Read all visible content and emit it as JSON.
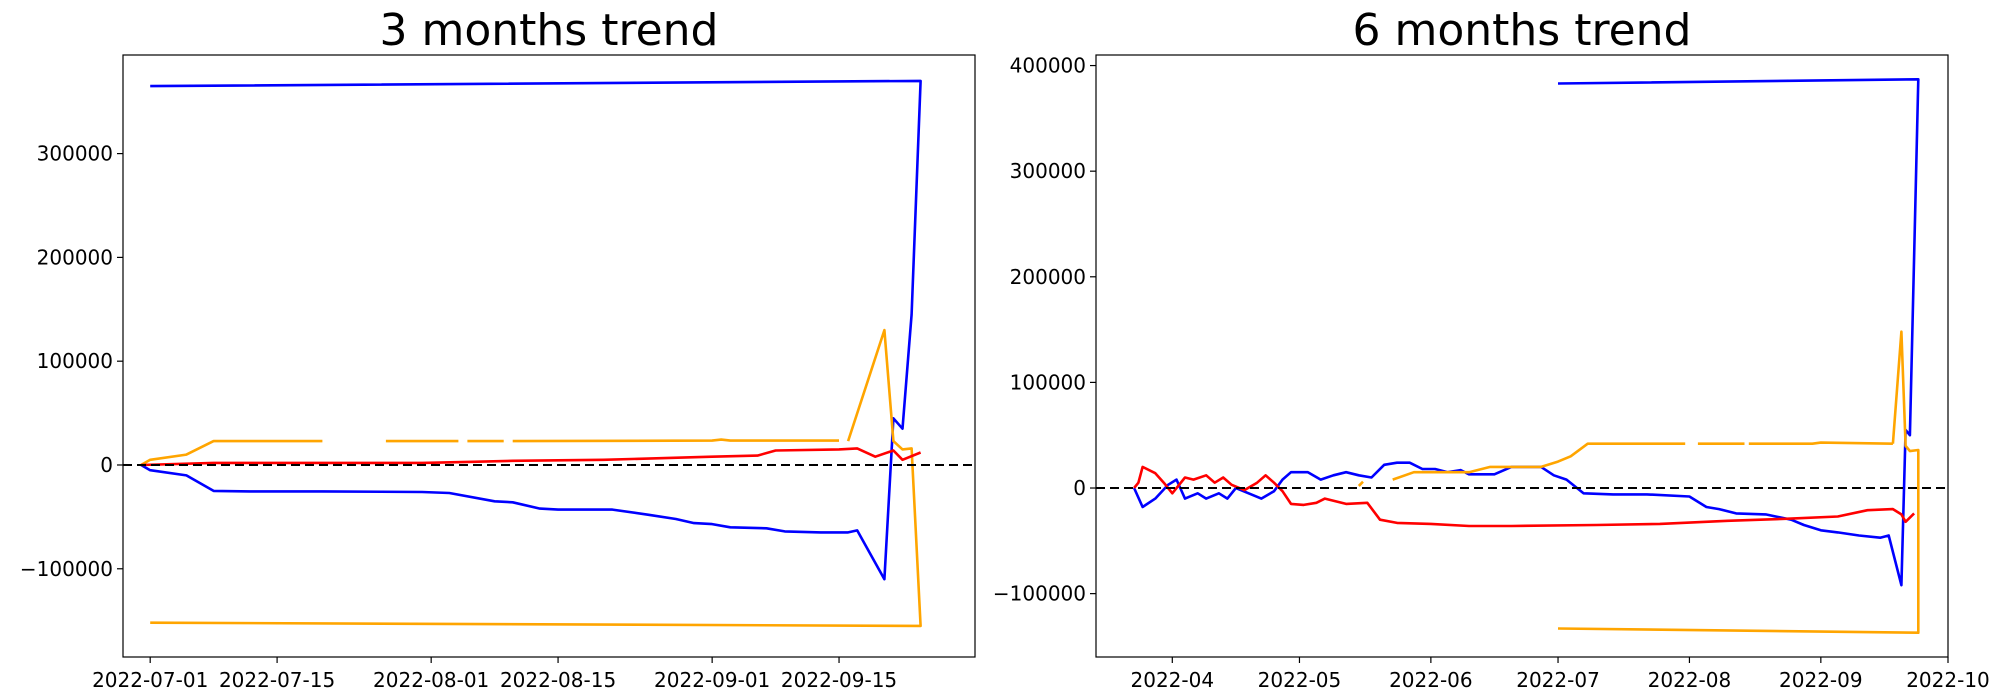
{
  "chart_data": [
    {
      "type": "line",
      "title": "3 months trend",
      "x_type": "date",
      "xlim": [
        "2022-06-28",
        "2022-09-30"
      ],
      "ylim": [
        -185000,
        395000
      ],
      "xticks": [
        "2022-07-01",
        "2022-07-15",
        "2022-08-01",
        "2022-08-15",
        "2022-09-01",
        "2022-09-15"
      ],
      "yticks": [
        -100000,
        0,
        100000,
        200000,
        300000
      ],
      "hline": 0,
      "series": [
        {
          "color": "#0000ff",
          "points": [
            [
              "2022-06-30",
              0
            ],
            [
              "2022-07-01",
              -5000
            ],
            [
              "2022-07-05",
              -10000
            ],
            [
              "2022-07-08",
              -25000
            ],
            [
              "2022-07-12",
              -25500
            ],
            [
              "2022-07-20",
              -25500
            ],
            [
              "2022-07-31",
              -26000
            ],
            [
              "2022-08-03",
              -27000
            ],
            [
              "2022-08-08",
              -35000
            ],
            [
              "2022-08-10",
              -36000
            ],
            [
              "2022-08-13",
              -42000
            ],
            [
              "2022-08-15",
              -43000
            ],
            [
              "2022-08-21",
              -43000
            ],
            [
              "2022-08-25",
              -48000
            ],
            [
              "2022-08-28",
              -52000
            ],
            [
              "2022-08-30",
              -56000
            ],
            [
              "2022-09-01",
              -57000
            ],
            [
              "2022-09-03",
              -60000
            ],
            [
              "2022-09-07",
              -61000
            ],
            [
              "2022-09-09",
              -64000
            ],
            [
              "2022-09-13",
              -65000
            ],
            [
              "2022-09-16",
              -65000
            ],
            [
              "2022-09-17",
              -63000
            ],
            [
              "2022-09-20",
              -110000
            ],
            [
              "2022-09-21",
              45000
            ],
            [
              "2022-09-22",
              35000
            ],
            [
              "2022-09-23",
              145000
            ],
            [
              "2022-09-24",
              370000
            ],
            [
              "2022-07-01",
              365000
            ]
          ]
        },
        {
          "color": "#ffa500",
          "points": [
            [
              "2022-06-30",
              0
            ],
            [
              "2022-07-01",
              5000
            ],
            [
              "2022-07-05",
              10000
            ],
            [
              "2022-07-08",
              23000
            ],
            [
              "2022-07-20",
              23000
            ],
            null,
            [
              "2022-07-27",
              23000
            ],
            [
              "2022-08-04",
              23000
            ],
            null,
            [
              "2022-08-05",
              23000
            ],
            [
              "2022-08-09",
              23000
            ],
            null,
            [
              "2022-08-10",
              23000
            ],
            [
              "2022-09-01",
              23500
            ],
            [
              "2022-09-02",
              24500
            ],
            [
              "2022-09-03",
              23500
            ],
            [
              "2022-09-15",
              23500
            ],
            null,
            [
              "2022-09-16",
              23000
            ],
            [
              "2022-09-20",
              130000
            ],
            [
              "2022-09-21",
              23000
            ],
            [
              "2022-09-22",
              15000
            ],
            [
              "2022-09-23",
              16000
            ],
            [
              "2022-09-24",
              -155000
            ],
            [
              "2022-07-01",
              -152000
            ]
          ]
        },
        {
          "color": "#ff0000",
          "points": [
            [
              "2022-06-30",
              0
            ],
            [
              "2022-07-08",
              2000
            ],
            [
              "2022-07-20",
              2000
            ],
            [
              "2022-07-31",
              2000
            ],
            [
              "2022-08-05",
              3000
            ],
            [
              "2022-08-10",
              4000
            ],
            [
              "2022-08-20",
              5000
            ],
            [
              "2022-09-01",
              8000
            ],
            [
              "2022-09-06",
              9000
            ],
            [
              "2022-09-08",
              14000
            ],
            [
              "2022-09-15",
              15000
            ],
            [
              "2022-09-17",
              16000
            ],
            [
              "2022-09-19",
              8000
            ],
            [
              "2022-09-21",
              14000
            ],
            [
              "2022-09-22",
              5000
            ],
            [
              "2022-09-24",
              12000
            ]
          ]
        }
      ]
    },
    {
      "type": "line",
      "title": "6 months trend",
      "x_type": "date",
      "xlim": [
        "2022-03-14",
        "2022-10-01"
      ],
      "ylim": [
        -160000,
        410000
      ],
      "xticks": [
        "2022-04",
        "2022-05",
        "2022-06",
        "2022-07",
        "2022-08",
        "2022-09",
        "2022-10"
      ],
      "yticks": [
        -100000,
        0,
        100000,
        200000,
        300000,
        400000
      ],
      "hline": 0,
      "series": [
        {
          "color": "#0000ff",
          "points": [
            [
              "2022-03-23",
              0
            ],
            [
              "2022-03-25",
              -18000
            ],
            [
              "2022-03-28",
              -10000
            ],
            [
              "2022-03-31",
              3000
            ],
            [
              "2022-04-02",
              8000
            ],
            [
              "2022-04-04",
              -10000
            ],
            [
              "2022-04-07",
              -5000
            ],
            [
              "2022-04-09",
              -10000
            ],
            [
              "2022-04-12",
              -5000
            ],
            [
              "2022-04-14",
              -10000
            ],
            [
              "2022-04-16",
              0
            ],
            [
              "2022-04-19",
              -5000
            ],
            [
              "2022-04-22",
              -10000
            ],
            [
              "2022-04-25",
              -3000
            ],
            [
              "2022-04-27",
              8000
            ],
            [
              "2022-04-29",
              15000
            ],
            [
              "2022-05-03",
              15000
            ],
            [
              "2022-05-06",
              8000
            ],
            [
              "2022-05-09",
              12000
            ],
            [
              "2022-05-12",
              15000
            ],
            [
              "2022-05-15",
              12000
            ],
            [
              "2022-05-18",
              10000
            ],
            [
              "2022-05-21",
              22000
            ],
            [
              "2022-05-24",
              24000
            ],
            [
              "2022-05-27",
              24000
            ],
            [
              "2022-05-30",
              18000
            ],
            [
              "2022-06-02",
              18000
            ],
            [
              "2022-06-05",
              15000
            ],
            [
              "2022-06-08",
              17000
            ],
            [
              "2022-06-10",
              13000
            ],
            [
              "2022-06-16",
              13000
            ],
            [
              "2022-06-20",
              20000
            ],
            [
              "2022-06-27",
              20000
            ],
            [
              "2022-06-30",
              12000
            ],
            [
              "2022-07-03",
              8000
            ],
            [
              "2022-07-07",
              -5000
            ],
            [
              "2022-07-14",
              -6000
            ],
            [
              "2022-07-22",
              -6000
            ],
            [
              "2022-08-01",
              -8000
            ],
            [
              "2022-08-05",
              -18000
            ],
            [
              "2022-08-08",
              -20000
            ],
            [
              "2022-08-12",
              -24000
            ],
            [
              "2022-08-19",
              -25000
            ],
            [
              "2022-08-25",
              -30000
            ],
            [
              "2022-08-28",
              -35000
            ],
            [
              "2022-09-01",
              -40000
            ],
            [
              "2022-09-05",
              -42000
            ],
            [
              "2022-09-10",
              -45000
            ],
            [
              "2022-09-15",
              -47000
            ],
            [
              "2022-09-17",
              -45000
            ],
            [
              "2022-09-20",
              -92000
            ],
            [
              "2022-09-21",
              55000
            ],
            [
              "2022-09-22",
              50000
            ],
            [
              "2022-09-24",
              387000
            ],
            [
              "2022-07-01",
              383000
            ]
          ]
        },
        {
          "color": "#ffa500",
          "points": [
            [
              "2022-05-15",
              2000
            ],
            [
              "2022-05-16",
              6000
            ],
            null,
            [
              "2022-05-23",
              8000
            ],
            [
              "2022-05-28",
              15000
            ],
            [
              "2022-06-10",
              15000
            ],
            [
              "2022-06-15",
              20000
            ],
            [
              "2022-06-27",
              20000
            ],
            [
              "2022-07-01",
              25000
            ],
            [
              "2022-07-04",
              30000
            ],
            [
              "2022-07-08",
              42000
            ],
            [
              "2022-07-31",
              42000
            ],
            null,
            [
              "2022-08-03",
              42000
            ],
            [
              "2022-08-14",
              42000
            ],
            null,
            [
              "2022-08-15",
              42000
            ],
            [
              "2022-08-30",
              42000
            ],
            [
              "2022-09-01",
              43000
            ],
            [
              "2022-09-18",
              42000
            ],
            null,
            [
              "2022-09-18",
              42000
            ],
            [
              "2022-09-20",
              148000
            ],
            [
              "2022-09-21",
              40000
            ],
            [
              "2022-09-22",
              35000
            ],
            [
              "2022-09-24",
              36000
            ],
            [
              "2022-09-24",
              -137000
            ],
            [
              "2022-07-01",
              -133000
            ]
          ]
        },
        {
          "color": "#ff0000",
          "points": [
            [
              "2022-03-23",
              0
            ],
            [
              "2022-03-24",
              5000
            ],
            [
              "2022-03-25",
              20000
            ],
            [
              "2022-03-28",
              14000
            ],
            [
              "2022-03-30",
              5000
            ],
            [
              "2022-04-01",
              -5000
            ],
            [
              "2022-04-04",
              10000
            ],
            [
              "2022-04-06",
              8000
            ],
            [
              "2022-04-09",
              12000
            ],
            [
              "2022-04-11",
              5000
            ],
            [
              "2022-04-13",
              10000
            ],
            [
              "2022-04-15",
              3000
            ],
            [
              "2022-04-18",
              -2000
            ],
            [
              "2022-04-21",
              5000
            ],
            [
              "2022-04-23",
              12000
            ],
            [
              "2022-04-25",
              5000
            ],
            [
              "2022-04-27",
              -3000
            ],
            [
              "2022-04-29",
              -15000
            ],
            [
              "2022-05-02",
              -16000
            ],
            [
              "2022-05-05",
              -14000
            ],
            [
              "2022-05-07",
              -10000
            ],
            [
              "2022-05-12",
              -15000
            ],
            [
              "2022-05-17",
              -14000
            ],
            [
              "2022-05-20",
              -30000
            ],
            [
              "2022-05-24",
              -33000
            ],
            [
              "2022-06-01",
              -34000
            ],
            [
              "2022-06-10",
              -36000
            ],
            [
              "2022-06-20",
              -36000
            ],
            [
              "2022-07-10",
              -35000
            ],
            [
              "2022-07-25",
              -34000
            ],
            [
              "2022-08-10",
              -31000
            ],
            [
              "2022-08-25",
              -29000
            ],
            [
              "2022-09-05",
              -27000
            ],
            [
              "2022-09-12",
              -21000
            ],
            [
              "2022-09-18",
              -20000
            ],
            [
              "2022-09-20",
              -25000
            ],
            [
              "2022-09-21",
              -32000
            ],
            [
              "2022-09-23",
              -24000
            ]
          ]
        }
      ]
    }
  ]
}
